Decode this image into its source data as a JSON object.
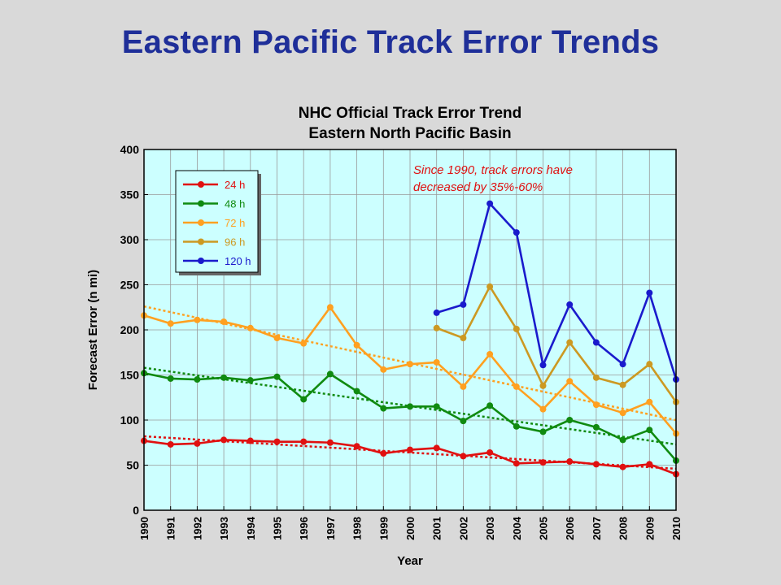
{
  "slide": {
    "title": "Eastern Pacific Track Error Trends"
  },
  "chart_data": {
    "type": "line",
    "title": "NHC Official Track Error Trend",
    "subtitle": "Eastern North Pacific Basin",
    "xlabel": "Year",
    "ylabel": "Forecast Error (n mi)",
    "annotation": [
      "Since 1990, track errors have",
      "decreased by 35%-60%"
    ],
    "ylim": [
      0,
      400
    ],
    "yticks": [
      0,
      50,
      100,
      150,
      200,
      250,
      300,
      350,
      400
    ],
    "x": [
      1990,
      1991,
      1992,
      1993,
      1994,
      1995,
      1996,
      1997,
      1998,
      1999,
      2000,
      2001,
      2002,
      2003,
      2004,
      2005,
      2006,
      2007,
      2008,
      2009,
      2010
    ],
    "grid": true,
    "legend_position": "top-left",
    "series": [
      {
        "name": "24 h",
        "color": "#e01010",
        "values": [
          77,
          73,
          74,
          78,
          77,
          76,
          76,
          75,
          71,
          63,
          67,
          69,
          60,
          64,
          52,
          53,
          54,
          51,
          48,
          51,
          40
        ],
        "trend": [
          82,
          46
        ]
      },
      {
        "name": "48 h",
        "color": "#108a10",
        "values": [
          152,
          146,
          145,
          147,
          144,
          148,
          123,
          151,
          132,
          113,
          115,
          115,
          99,
          116,
          93,
          87,
          100,
          92,
          78,
          89,
          55
        ],
        "trend": [
          158,
          73
        ]
      },
      {
        "name": "72 h",
        "color": "#ffa020",
        "values": [
          216,
          207,
          211,
          209,
          202,
          191,
          185,
          225,
          183,
          156,
          162,
          164,
          137,
          173,
          137,
          112,
          143,
          117,
          108,
          120,
          85
        ],
        "trend": [
          226,
          100
        ]
      },
      {
        "name": "96 h",
        "color": "#cc9922",
        "values": [
          null,
          null,
          null,
          null,
          null,
          null,
          null,
          null,
          null,
          null,
          null,
          202,
          191,
          248,
          201,
          138,
          186,
          147,
          139,
          162,
          120
        ],
        "trend": null
      },
      {
        "name": "120 h",
        "color": "#1a1acc",
        "values": [
          null,
          null,
          null,
          null,
          null,
          null,
          null,
          null,
          null,
          null,
          null,
          219,
          228,
          340,
          308,
          161,
          228,
          186,
          162,
          241,
          145
        ],
        "trend": null
      }
    ]
  }
}
